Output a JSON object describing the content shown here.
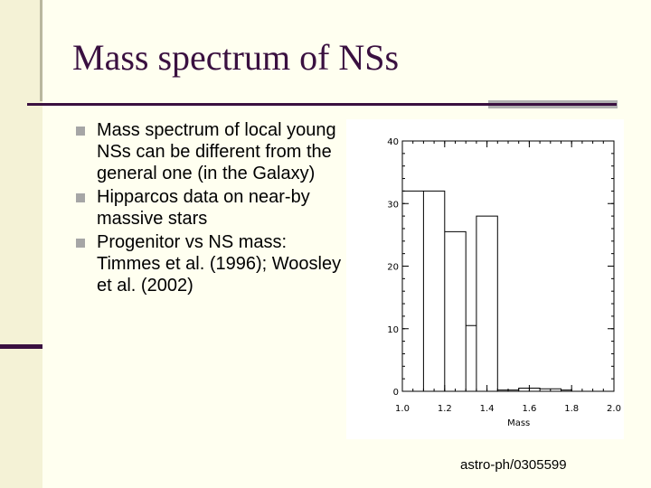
{
  "slide": {
    "title": "Mass spectrum of NSs",
    "bullets": [
      "Mass spectrum of local young NSs can be different from the general one (in the Galaxy)",
      "Hipparcos data on near-by massive stars",
      "Progenitor vs NS mass: Timmes et al. (1996); Woosley et al. (2002)"
    ],
    "citation": "astro-ph/0305599"
  },
  "colors": {
    "title": "#3a1040",
    "accent": "#3a1040",
    "bullet_marker": "#a6a6a6",
    "background": "#fffff0"
  },
  "chart_data": {
    "type": "bar",
    "subtype": "step-histogram",
    "xlabel": "Mass",
    "ylabel": "",
    "title": "",
    "xlim": [
      1.0,
      2.0
    ],
    "ylim": [
      0,
      40
    ],
    "x_ticks": [
      "1.0",
      "1.2",
      "1.4",
      "1.6",
      "1.8",
      "2.0"
    ],
    "y_ticks": [
      "0",
      "10",
      "20",
      "30",
      "40"
    ],
    "bin_width": 0.1,
    "bins": [
      {
        "x0": 1.0,
        "x1": 1.1,
        "value": 32
      },
      {
        "x0": 1.1,
        "x1": 1.2,
        "value": 32
      },
      {
        "x0": 1.2,
        "x1": 1.3,
        "value": 25.5
      },
      {
        "x0": 1.3,
        "x1": 1.35,
        "value": 10.5
      },
      {
        "x0": 1.35,
        "x1": 1.45,
        "value": 28
      },
      {
        "x0": 1.45,
        "x1": 1.55,
        "value": 0.2
      },
      {
        "x0": 1.55,
        "x1": 1.65,
        "value": 0.5
      },
      {
        "x0": 1.65,
        "x1": 1.75,
        "value": 0.4
      },
      {
        "x0": 1.75,
        "x1": 1.8,
        "value": 0.2
      }
    ],
    "grid": false,
    "legend": "none"
  }
}
